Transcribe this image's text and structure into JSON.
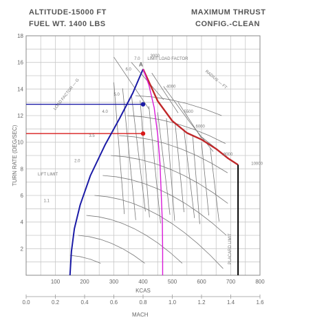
{
  "header": {
    "left_line1": "ALTITUDE-15000 FT",
    "left_line2": "FUEL WT. 1400 LBS",
    "right_line1": "MAXIMUM THRUST",
    "right_line2": "CONFIG.-CLEAN"
  },
  "chart_data": {
    "type": "line",
    "ylabel": "TURN RATE (DEG/SEC)",
    "xlabel": "KCAS",
    "x2label": "MACH",
    "x_ticks": [
      "100",
      "200",
      "300",
      "400",
      "500",
      "600",
      "700",
      "800"
    ],
    "y_ticks": [
      "2",
      "4",
      "6",
      "8",
      "10",
      "12",
      "14",
      "16",
      "18"
    ],
    "mach_ticks": [
      "0.0",
      "0.2",
      "0.4",
      "0.6",
      "0.8",
      "1.0",
      "1.2",
      "1.4",
      "1.6"
    ],
    "xlim": [
      0,
      800
    ],
    "ylim": [
      0,
      18
    ],
    "mach_lim": [
      0,
      1.6
    ],
    "grid": true,
    "series": [
      {
        "key": "lift",
        "color": "#1a1aa6",
        "points": [
          [
            150,
            0
          ],
          [
            155,
            1.8
          ],
          [
            165,
            3.5
          ],
          [
            185,
            5.3
          ],
          [
            220,
            7.5
          ],
          [
            270,
            9.8
          ],
          [
            320,
            11.8
          ],
          [
            365,
            13.7
          ],
          [
            400,
            15.5
          ]
        ]
      },
      {
        "key": "load",
        "color": "#c0282a",
        "points": [
          [
            400,
            15.5
          ],
          [
            450,
            13.1
          ],
          [
            500,
            11.6
          ],
          [
            550,
            10.7
          ],
          [
            600,
            10.2
          ],
          [
            650,
            9.5
          ],
          [
            690,
            8.8
          ],
          [
            725,
            8.3
          ]
        ]
      },
      {
        "key": "placard",
        "color": "#000000",
        "points": [
          [
            725,
            8.3
          ],
          [
            725,
            0
          ]
        ]
      },
      {
        "key": "ps0",
        "color": "#d81ad8",
        "points": [
          [
            400,
            15.5
          ],
          [
            420,
            14.3
          ],
          [
            438,
            12.6
          ],
          [
            450,
            10.6
          ],
          [
            458,
            8.4
          ],
          [
            462,
            6.2
          ],
          [
            466,
            4.0
          ],
          [
            467,
            1.8
          ],
          [
            467,
            0
          ]
        ]
      }
    ],
    "points": [
      {
        "x": 400,
        "y": 12.85,
        "color": "#1a1aa6"
      },
      {
        "x": 400,
        "y": 10.65,
        "color": "#d81a1a"
      }
    ],
    "ref_lines": [
      {
        "y": 12.85,
        "x0": 0,
        "x1": 400,
        "color": "#1a1aa6"
      },
      {
        "y": 10.65,
        "x0": 0,
        "x1": 400,
        "color": "#d81a1a"
      }
    ],
    "marker": "A",
    "annotations": {
      "lift_limit": "LIFT LIMIT",
      "load_factor": "LOAD FACTOR — G",
      "limit_load_factor": "LIMIT LOAD FACTOR",
      "radius": "RADIUS — FT",
      "placard_limit": "PLACARD LIMIT"
    },
    "g_labels": [
      "1.1",
      "2.0",
      "3.5",
      "4.0",
      "5.0",
      "6.0",
      "7.0"
    ],
    "radius_labels": [
      "3000",
      "4000",
      "5500",
      "6000",
      "8000",
      "10000"
    ]
  }
}
